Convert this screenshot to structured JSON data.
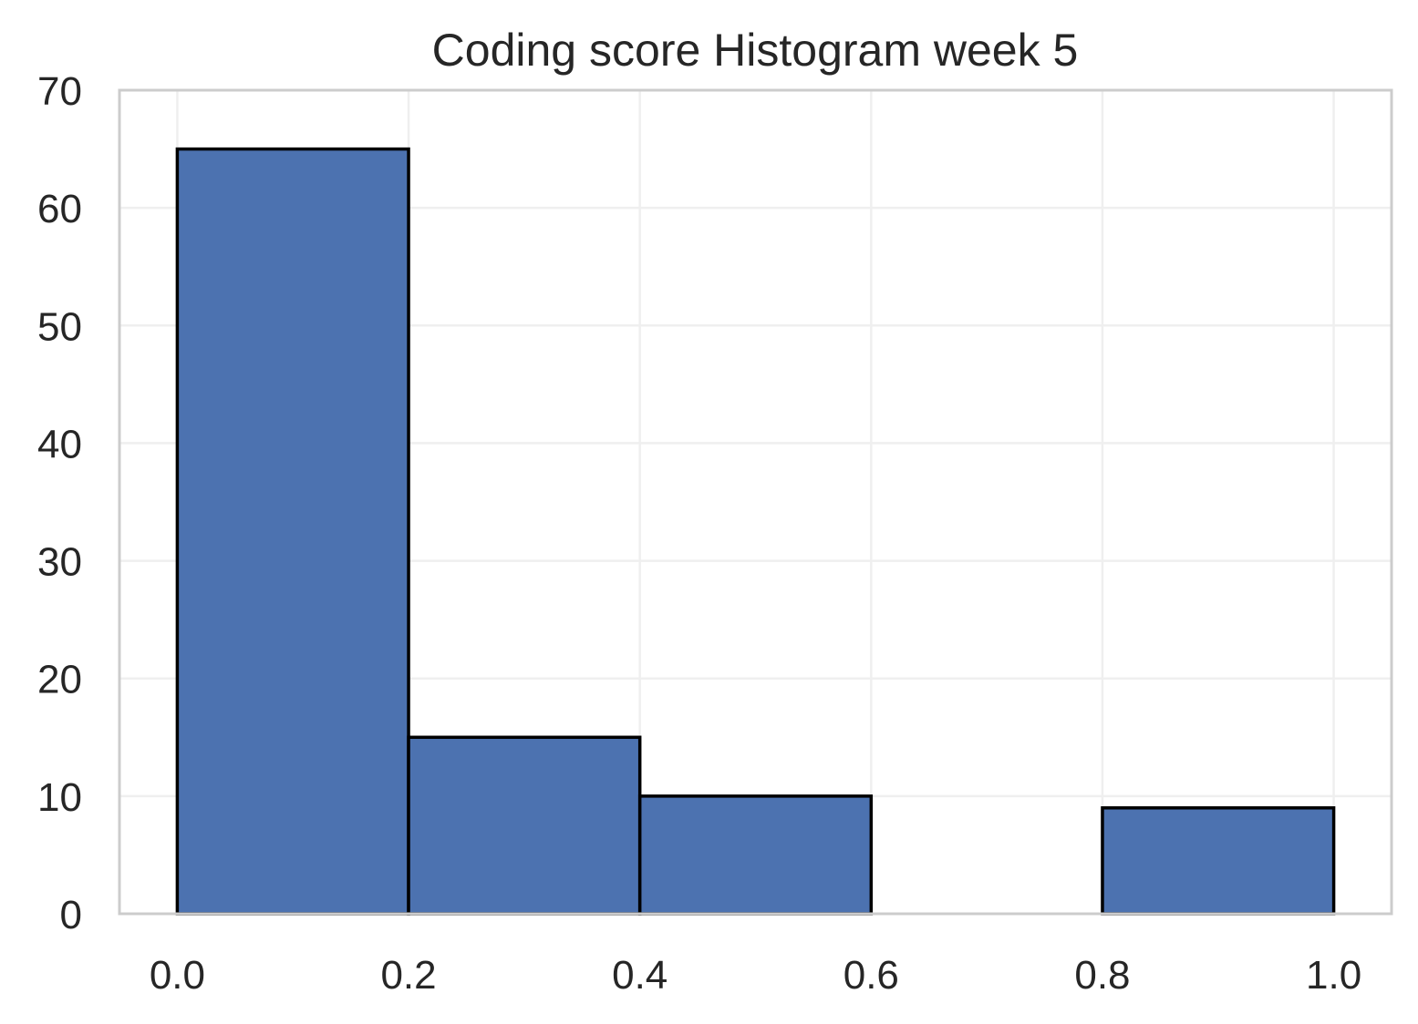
{
  "chart_data": {
    "type": "bar",
    "title": "Coding score Histogram week 5",
    "xlabel": "",
    "ylabel": "",
    "bins": [
      {
        "x0": 0.0,
        "x1": 0.2,
        "count": 65
      },
      {
        "x0": 0.2,
        "x1": 0.4,
        "count": 15
      },
      {
        "x0": 0.4,
        "x1": 0.6,
        "count": 10
      },
      {
        "x0": 0.6,
        "x1": 0.8,
        "count": 0
      },
      {
        "x0": 0.8,
        "x1": 1.0,
        "count": 9
      }
    ],
    "xlim": [
      -0.05,
      1.05
    ],
    "ylim": [
      0,
      70
    ],
    "x_ticks": [
      0.0,
      0.2,
      0.4,
      0.6,
      0.8,
      1.0
    ],
    "x_tick_labels": [
      "0.0",
      "0.2",
      "0.4",
      "0.6",
      "0.8",
      "1.0"
    ],
    "y_ticks": [
      0,
      10,
      20,
      30,
      40,
      50,
      60,
      70
    ],
    "y_tick_labels": [
      "0",
      "10",
      "20",
      "30",
      "40",
      "50",
      "60",
      "70"
    ],
    "grid": true,
    "bar_color": "#4c72b0",
    "edge_color": "#000000"
  }
}
